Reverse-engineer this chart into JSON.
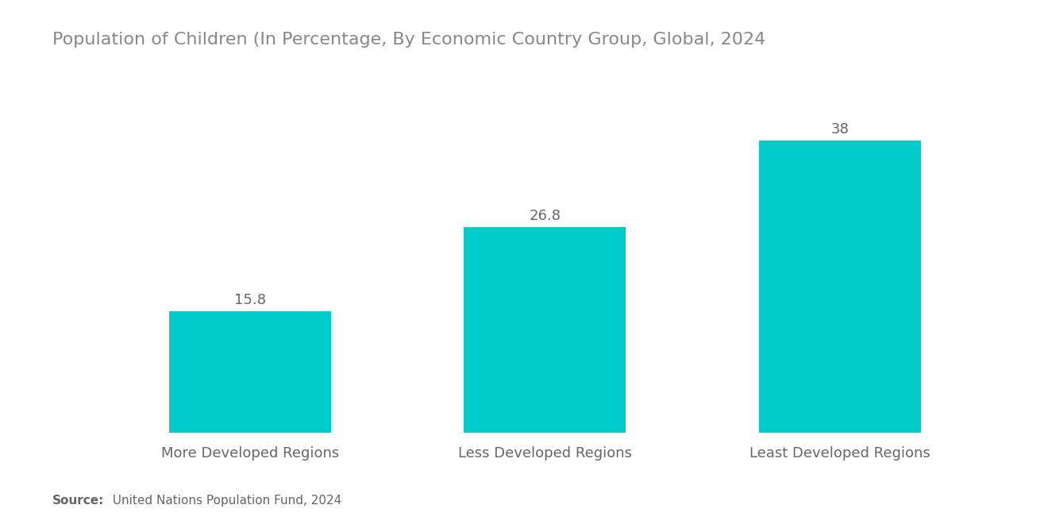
{
  "title": "Population of Children (In Percentage, By Economic Country Group, Global, 2024",
  "categories": [
    "More Developed Regions",
    "Less Developed Regions",
    "Least Developed Regions"
  ],
  "values": [
    15.8,
    26.8,
    38
  ],
  "bar_color": "#00CCCC",
  "title_fontsize": 16,
  "label_fontsize": 13,
  "value_fontsize": 13,
  "title_color": "#888888",
  "label_color": "#666666",
  "value_color": "#666666",
  "background_color": "#ffffff",
  "source_bold": "Source:",
  "source_normal": "  United Nations Population Fund, 2024",
  "source_fontsize": 11,
  "ylim": [
    0,
    46
  ],
  "bar_width": 0.55
}
